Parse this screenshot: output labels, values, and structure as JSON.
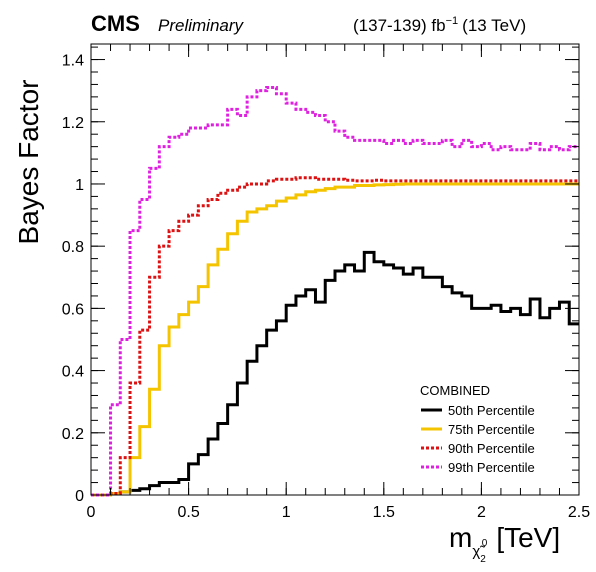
{
  "header": {
    "experiment": "CMS",
    "status": "Preliminary",
    "lumi_main": "(137-139) fb",
    "lumi_exp": "−1",
    "lumi_energy": "(13 TeV)"
  },
  "chart_data": {
    "type": "line",
    "style": "step-histogram",
    "xlabel": {
      "base": "m",
      "sub": "χ̃",
      "sub2": "2",
      "sup": "0",
      "unit": "[TeV]"
    },
    "ylabel": "Bayes Factor",
    "xlim": [
      0,
      2.5
    ],
    "ylim": [
      0,
      1.45
    ],
    "x_ticks": [
      "0",
      "0.5",
      "1",
      "1.5",
      "2",
      "2.5"
    ],
    "y_ticks": [
      "0",
      "0.2",
      "0.4",
      "0.6",
      "0.8",
      "1",
      "1.2",
      "1.4"
    ],
    "bin_width": 0.05,
    "legend_title": "COMBINED",
    "legend_position": "bottom-right",
    "series": [
      {
        "name": "50th Percentile",
        "color": "#000000",
        "dash": "solid",
        "values": [
          0.0,
          0.0,
          0.005,
          0.01,
          0.015,
          0.02,
          0.03,
          0.04,
          0.04,
          0.05,
          0.1,
          0.13,
          0.18,
          0.23,
          0.29,
          0.36,
          0.43,
          0.48,
          0.53,
          0.56,
          0.61,
          0.64,
          0.66,
          0.62,
          0.69,
          0.72,
          0.74,
          0.72,
          0.78,
          0.75,
          0.74,
          0.73,
          0.71,
          0.73,
          0.7,
          0.7,
          0.67,
          0.65,
          0.64,
          0.6,
          0.6,
          0.61,
          0.59,
          0.6,
          0.58,
          0.63,
          0.57,
          0.6,
          0.62,
          0.55
        ]
      },
      {
        "name": "75th Percentile",
        "color": "#f5c400",
        "dash": "solid",
        "values": [
          0.0,
          0.0,
          0.005,
          0.01,
          0.12,
          0.22,
          0.34,
          0.48,
          0.54,
          0.58,
          0.62,
          0.67,
          0.74,
          0.79,
          0.84,
          0.88,
          0.91,
          0.92,
          0.93,
          0.945,
          0.955,
          0.965,
          0.975,
          0.98,
          0.985,
          0.99,
          0.99,
          0.995,
          0.995,
          0.997,
          0.998,
          0.999,
          1.0,
          1.0,
          1.0,
          1.0,
          1.0,
          1.0,
          1.0,
          1.0,
          1.0,
          1.0,
          1.0,
          1.0,
          1.0,
          1.0,
          1.0,
          1.0,
          1.0,
          1.0
        ]
      },
      {
        "name": "90th Percentile",
        "color": "#dd1111",
        "dash": "dotted",
        "values": [
          0.0,
          0.0,
          0.005,
          0.12,
          0.36,
          0.53,
          0.7,
          0.8,
          0.85,
          0.88,
          0.9,
          0.93,
          0.95,
          0.97,
          0.98,
          0.99,
          1.0,
          1.0,
          1.01,
          1.015,
          1.015,
          1.02,
          1.02,
          1.015,
          1.015,
          1.015,
          1.012,
          1.01,
          1.01,
          1.012,
          1.01,
          1.01,
          1.01,
          1.01,
          1.01,
          1.01,
          1.01,
          1.01,
          1.01,
          1.01,
          1.01,
          1.01,
          1.01,
          1.01,
          1.01,
          1.01,
          1.01,
          1.01,
          1.01,
          1.01
        ]
      },
      {
        "name": "99th Percentile",
        "color": "#e020e0",
        "dash": "dotted",
        "values": [
          0.0,
          0.0,
          0.29,
          0.5,
          0.85,
          0.95,
          1.05,
          1.12,
          1.15,
          1.16,
          1.18,
          1.18,
          1.19,
          1.19,
          1.24,
          1.22,
          1.28,
          1.3,
          1.31,
          1.29,
          1.26,
          1.24,
          1.23,
          1.22,
          1.2,
          1.17,
          1.15,
          1.14,
          1.14,
          1.14,
          1.13,
          1.14,
          1.13,
          1.14,
          1.13,
          1.13,
          1.14,
          1.12,
          1.14,
          1.12,
          1.13,
          1.11,
          1.12,
          1.11,
          1.11,
          1.13,
          1.11,
          1.12,
          1.11,
          1.12
        ]
      }
    ]
  }
}
